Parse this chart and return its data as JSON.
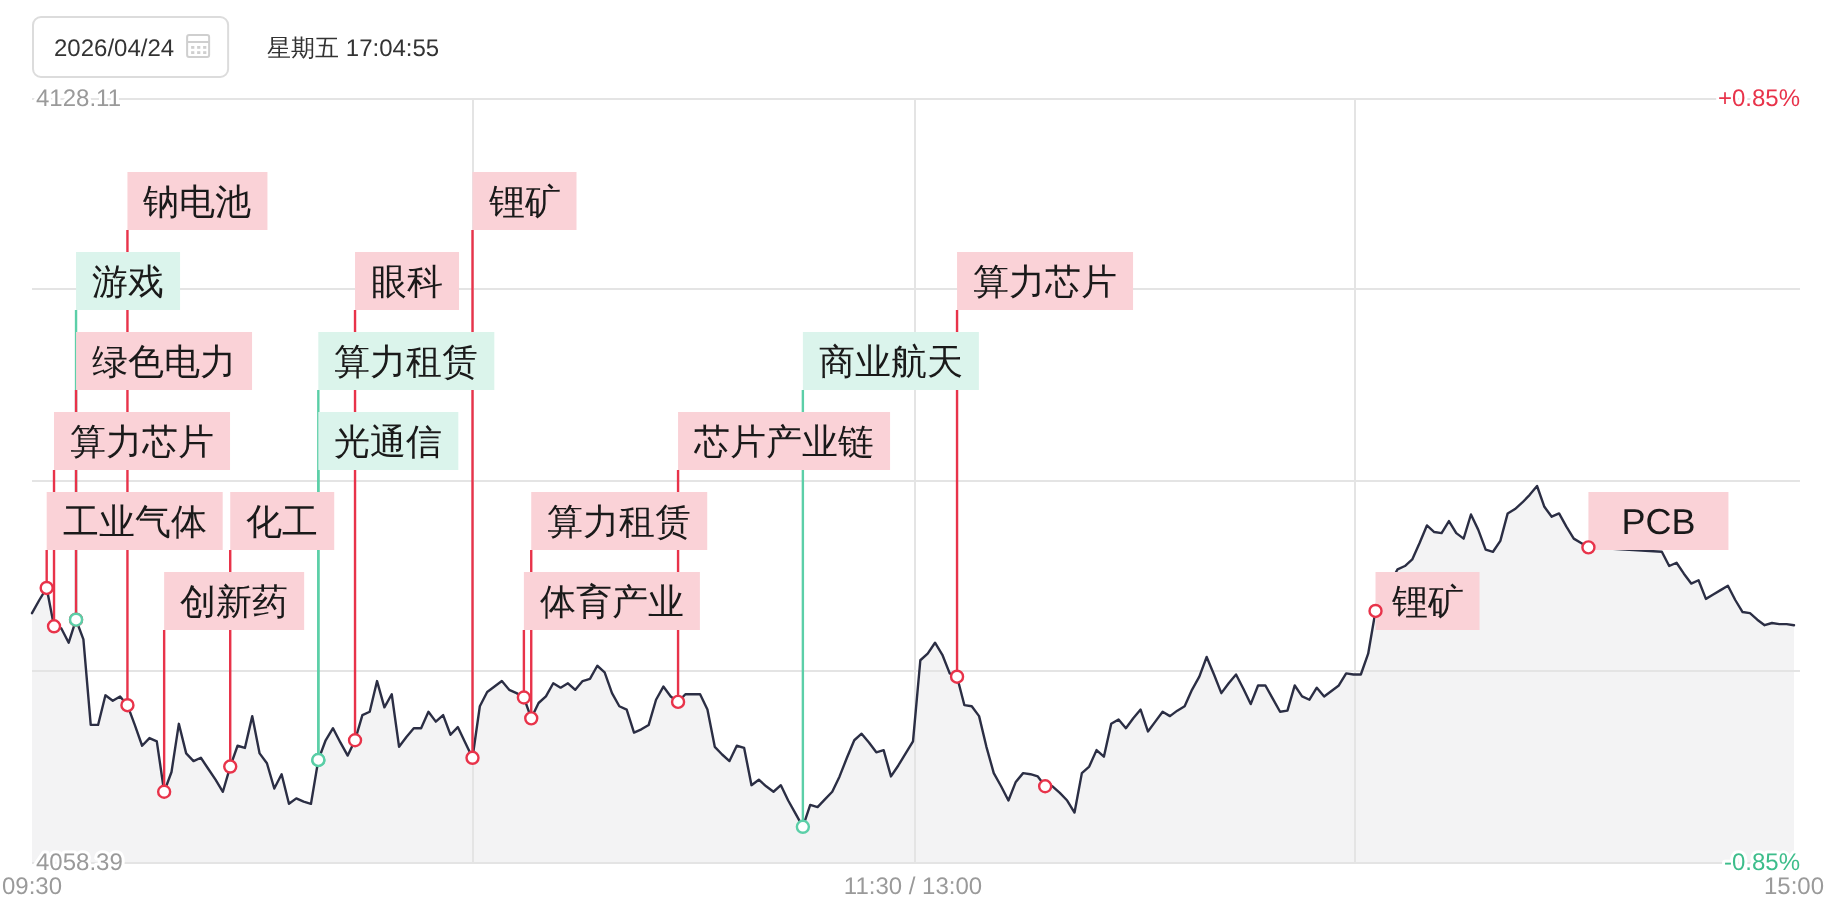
{
  "chart_data": {
    "type": "area",
    "title": "2026/04/24",
    "subtitle": "星期五 17:04:55",
    "categories": [
      "09:30",
      null,
      null,
      null,
      null,
      null,
      null,
      null,
      null,
      null,
      null,
      null,
      null,
      null,
      null,
      null,
      null,
      null,
      null,
      null,
      null,
      null,
      null,
      null,
      null,
      null,
      null,
      null,
      null,
      null,
      null,
      null,
      null,
      null,
      null,
      null,
      null,
      null,
      null,
      null,
      null,
      null,
      null,
      null,
      null,
      null,
      null,
      null,
      null,
      null,
      null,
      null,
      null,
      null,
      null,
      null,
      null,
      null,
      null,
      null,
      null,
      null,
      null,
      null,
      null,
      null,
      null,
      null,
      null,
      null,
      null,
      null,
      null,
      null,
      null,
      null,
      null,
      null,
      null,
      null,
      null,
      null,
      null,
      null,
      null,
      null,
      null,
      null,
      null,
      null,
      null,
      null,
      null,
      null,
      null,
      null,
      null,
      null,
      null,
      null,
      null,
      null,
      null,
      null,
      null,
      null,
      null,
      null,
      null,
      null,
      null,
      null,
      null,
      null,
      null,
      null,
      null,
      null,
      null,
      null,
      "11:30 / 13:00",
      null,
      null,
      null,
      null,
      null,
      null,
      null,
      null,
      null,
      null,
      null,
      null,
      null,
      null,
      null,
      null,
      null,
      null,
      null,
      null,
      null,
      null,
      null,
      null,
      null,
      null,
      null,
      null,
      null,
      null,
      null,
      null,
      null,
      null,
      null,
      null,
      null,
      null,
      null,
      null,
      null,
      null,
      null,
      null,
      null,
      null,
      null,
      null,
      null,
      null,
      null,
      null,
      null,
      null,
      null,
      null,
      null,
      null,
      null,
      null,
      null,
      null,
      null,
      null,
      null,
      null,
      null,
      null,
      null,
      null,
      null,
      null,
      null,
      null,
      null,
      null,
      null,
      null,
      null,
      null,
      null,
      null,
      null,
      null,
      null,
      null,
      null,
      null,
      null,
      null,
      null,
      null,
      null,
      null,
      null,
      null,
      null,
      null,
      null,
      null,
      null,
      null,
      null,
      null,
      null,
      null,
      null,
      null,
      null,
      null,
      null,
      null,
      null,
      null,
      null,
      null,
      null,
      null,
      null,
      "15:00"
    ],
    "ylim": [
      4058.39,
      4128.11
    ],
    "yticks": [
      4058.39,
      {
        "value": 4075.82,
        "label": null
      },
      {
        "value": 4093.25,
        "label": null
      },
      {
        "value": 4110.68,
        "label": null
      },
      4128.11
    ],
    "y2lim": [
      -0.85,
      0.85
    ],
    "y2ticks": [
      {
        "value": -0.85,
        "label": "-0.85%"
      },
      {
        "value": 0.85,
        "label": "+0.85%"
      }
    ],
    "grid": true,
    "series": [
      {
        "color": "#2b2e44",
        "values": [
          4081.1,
          4082.3,
          4083.4,
          4079.9,
          4079.7,
          4078.4,
          4080.5,
          4078.7,
          4070.9,
          4070.9,
          4073.6,
          4073.1,
          4073.5,
          4072.7,
          4070.9,
          4069.0,
          4069.7,
          4069.4,
          4064.8,
          4066.6,
          4071.0,
          4068.3,
          4067.6,
          4067.9,
          4066.9,
          4065.9,
          4064.8,
          4067.1,
          4069.0,
          4068.8,
          4071.7,
          4068.3,
          4067.4,
          4065.1,
          4066.4,
          4063.7,
          4064.2,
          4063.9,
          4063.7,
          4067.7,
          4069.5,
          4070.6,
          4069.3,
          4068.1,
          4069.5,
          4071.8,
          4072.1,
          4074.9,
          4072.5,
          4073.7,
          4068.9,
          4069.8,
          4070.6,
          4070.6,
          4072.1,
          4071.2,
          4071.8,
          4070.0,
          4070.7,
          4069.3,
          4067.9,
          4072.6,
          4073.9,
          4074.4,
          4074.9,
          4074.1,
          4073.8,
          4073.4,
          4071.5,
          4072.9,
          4073.5,
          4074.7,
          4074.3,
          4074.7,
          4074.1,
          4074.9,
          4075.1,
          4076.3,
          4075.7,
          4073.8,
          4072.6,
          4072.3,
          4070.2,
          4070.5,
          4070.9,
          4073.2,
          4074.4,
          4073.5,
          4073.0,
          4073.7,
          4073.7,
          4073.7,
          4072.3,
          4068.9,
          4068.2,
          4067.6,
          4069.0,
          4068.8,
          4065.4,
          4065.9,
          4065.3,
          4064.8,
          4065.4,
          4064.0,
          4062.8,
          4061.6,
          4063.6,
          4063.4,
          4064.1,
          4064.8,
          4066.2,
          4067.9,
          4069.5,
          4070.1,
          4069.3,
          4068.4,
          4068.6,
          4066.2,
          4067.2,
          4068.3,
          4069.4,
          4076.8,
          4077.4,
          4078.4,
          4077.3,
          4075.6,
          4075.3,
          4072.7,
          4072.6,
          4071.7,
          4068.9,
          4066.5,
          4065.3,
          4064.0,
          4065.7,
          4066.5,
          4066.4,
          4066.2,
          4065.3,
          4065.3,
          4064.7,
          4064.0,
          4062.9,
          4066.5,
          4067.1,
          4068.6,
          4068.0,
          4071.0,
          4071.4,
          4070.6,
          4071.5,
          4072.3,
          4070.3,
          4071.2,
          4072.1,
          4071.7,
          4072.2,
          4072.6,
          4074.1,
          4075.3,
          4077.1,
          4075.5,
          4073.8,
          4074.7,
          4075.5,
          4074.2,
          4072.8,
          4074.5,
          4074.5,
          4073.3,
          4072.1,
          4072.2,
          4074.5,
          4073.5,
          4073.2,
          4074.3,
          4073.5,
          4074.0,
          4074.5,
          4075.6,
          4075.5,
          4075.5,
          4077.4,
          4081.3,
          null,
          null,
          4085.1,
          4085.4,
          4086.0,
          4087.5,
          4089.1,
          4088.5,
          4088.4,
          4089.5,
          4088.4,
          4087.9,
          4090.1,
          4088.7,
          4086.9,
          4086.7,
          4087.7,
          4090.2,
          4090.6,
          4091.2,
          4091.9,
          4092.7,
          4090.8,
          4089.9,
          4090.2,
          4089.0,
          4087.9,
          4087.5,
          4087.1,
          null,
          null,
          null,
          null,
          null,
          null,
          null,
          null,
          null,
          4086.7,
          4085.4,
          4085.7,
          4084.7,
          4083.8,
          4084.1,
          4082.4,
          4082.8,
          4083.2,
          4083.6,
          4082.3,
          4081.2,
          4081.1,
          4080.5,
          4080.0,
          4080.2,
          4080.1,
          4080.1,
          4080.0
        ]
      },
      {
        "type": "scatter",
        "color": "#e8334a",
        "marker": "circle",
        "values": [
          null,
          null,
          4083.4,
          4079.9,
          null,
          null,
          4080.5,
          null,
          null,
          null,
          null,
          null,
          null,
          4072.7,
          null,
          null,
          null,
          null,
          4064.8,
          null,
          null,
          null,
          null,
          null,
          null,
          null,
          null,
          4067.1,
          null,
          null,
          null,
          null,
          null,
          null,
          null,
          null,
          null,
          null,
          null,
          null,
          null,
          null,
          null,
          null,
          4069.5,
          null,
          null,
          null,
          null,
          null,
          null,
          null,
          null,
          null,
          null,
          null,
          null,
          null,
          null,
          null,
          4067.9,
          null,
          null,
          null,
          null,
          null,
          null,
          4073.4,
          4071.5,
          null,
          null,
          null,
          null,
          null,
          null,
          null,
          null,
          null,
          null,
          null,
          null,
          null,
          null,
          null,
          null,
          null,
          null,
          null,
          4073.0,
          null,
          null,
          null,
          null,
          null,
          null,
          null,
          null,
          null,
          null,
          null,
          null,
          null,
          null,
          null,
          null,
          null,
          null,
          null,
          null,
          null,
          null,
          null,
          null,
          null,
          null,
          null,
          null,
          null,
          null,
          null,
          null,
          null,
          null,
          null,
          null,
          null,
          4075.3,
          null,
          null,
          null,
          null,
          null,
          null,
          null,
          null,
          null,
          null,
          null,
          4065.3,
          null,
          null,
          null,
          null,
          null,
          null,
          null,
          null,
          null,
          null,
          null,
          null,
          null,
          null,
          null,
          null,
          null,
          null,
          null,
          null,
          null,
          null,
          null,
          null,
          null,
          null,
          null,
          null,
          null,
          null,
          null,
          null,
          null,
          null,
          null,
          null,
          null,
          null,
          null,
          null,
          null,
          null,
          null,
          null,
          4081.3,
          null,
          null,
          null,
          null,
          null,
          null,
          null,
          null,
          null,
          null,
          null,
          null,
          null,
          null,
          null,
          null,
          null,
          null,
          null,
          null,
          null,
          null,
          null,
          null,
          null,
          null,
          null,
          null,
          4087.1,
          null,
          null,
          null,
          null,
          null,
          null,
          null,
          null,
          null,
          null,
          null,
          null,
          null,
          null,
          null,
          null,
          null,
          null,
          null,
          null,
          null,
          null,
          null,
          null,
          null,
          null,
          null,
          null
        ],
        "value_labels": [
          null,
          null,
          "工业气体",
          "算力芯片",
          null,
          null,
          "绿色电力",
          null,
          null,
          null,
          null,
          null,
          null,
          "钠电池",
          null,
          null,
          null,
          null,
          "创新药",
          null,
          null,
          null,
          null,
          null,
          null,
          null,
          null,
          "化工",
          null,
          null,
          null,
          null,
          null,
          null,
          null,
          null,
          null,
          null,
          null,
          null,
          null,
          null,
          null,
          null,
          "眼科",
          null,
          null,
          null,
          null,
          null,
          null,
          null,
          null,
          null,
          null,
          null,
          null,
          null,
          null,
          null,
          "锂矿",
          null,
          null,
          null,
          null,
          null,
          null,
          "体育产业",
          "算力租赁",
          null,
          null,
          null,
          null,
          null,
          null,
          null,
          null,
          null,
          null,
          null,
          null,
          null,
          null,
          null,
          null,
          null,
          null,
          null,
          "芯片产业链",
          null,
          null,
          null,
          null,
          null,
          null,
          null,
          null,
          null,
          null,
          null,
          null,
          null,
          null,
          null,
          null,
          null,
          null,
          null,
          null,
          null,
          null,
          null,
          null,
          null,
          null,
          null,
          null,
          null,
          null,
          null,
          null,
          null,
          null,
          null,
          null,
          null,
          "算力芯片",
          null,
          null,
          null,
          null,
          null,
          null,
          null,
          null,
          null,
          null,
          null,
          null,
          null,
          null,
          null,
          null,
          null,
          null,
          null,
          null,
          null,
          null,
          null,
          null,
          null,
          null,
          null,
          null,
          null,
          null,
          null,
          null,
          null,
          null,
          null,
          null,
          null,
          null,
          null,
          null,
          null,
          null,
          null,
          null,
          null,
          null,
          null,
          null,
          null,
          null,
          null,
          null,
          null,
          null,
          null,
          null,
          "锂矿",
          null,
          null,
          null,
          null,
          null,
          null,
          null,
          null,
          null,
          null,
          null,
          null,
          null,
          null,
          null,
          null,
          null,
          null,
          null,
          null,
          null,
          null,
          null,
          null,
          null,
          null,
          null,
          null,
          "PCB",
          null,
          null,
          null,
          null,
          null,
          null,
          null,
          null,
          null,
          null,
          null,
          null,
          null,
          null,
          null,
          null,
          null,
          null,
          null,
          null,
          null,
          null,
          null,
          null,
          null,
          null,
          null,
          null
        ]
      },
      {
        "type": "scatter",
        "color": "#5ccfa8",
        "marker": "circle",
        "values": [
          null,
          null,
          null,
          null,
          null,
          null,
          4080.5,
          null,
          null,
          null,
          null,
          null,
          null,
          null,
          null,
          null,
          null,
          null,
          null,
          null,
          null,
          null,
          null,
          null,
          null,
          null,
          null,
          null,
          null,
          null,
          null,
          null,
          null,
          null,
          null,
          null,
          null,
          null,
          null,
          4067.7,
          null,
          null,
          null,
          null,
          null,
          null,
          null,
          null,
          null,
          null,
          null,
          null,
          null,
          null,
          null,
          null,
          null,
          null,
          null,
          null,
          null,
          null,
          null,
          null,
          null,
          null,
          null,
          null,
          null,
          null,
          null,
          null,
          null,
          null,
          null,
          null,
          null,
          null,
          null,
          null,
          null,
          null,
          null,
          null,
          null,
          null,
          null,
          null,
          null,
          null,
          null,
          null,
          null,
          null,
          null,
          null,
          null,
          null,
          null,
          null,
          null,
          null,
          null,
          null,
          null,
          4061.6,
          null,
          null,
          null,
          null,
          null,
          null,
          null,
          null,
          null,
          null,
          null,
          null,
          null,
          null,
          null,
          null,
          null,
          null,
          null,
          null,
          null,
          null,
          null,
          null,
          null,
          null,
          null,
          null,
          null,
          null,
          null,
          null,
          null,
          null,
          null,
          null,
          null,
          null,
          null,
          null,
          null,
          null,
          null,
          null,
          null,
          null,
          null,
          null,
          null,
          null,
          null,
          null,
          null,
          null,
          null,
          null,
          null,
          null,
          null,
          null,
          null,
          null,
          null,
          null,
          null,
          null,
          null,
          null,
          null,
          null,
          null,
          null,
          null,
          null,
          null,
          null,
          null,
          null,
          null,
          null,
          null,
          null,
          null,
          null,
          null,
          null,
          null,
          null,
          null,
          null,
          null,
          null,
          null,
          null,
          null,
          null,
          null,
          null,
          null,
          null,
          null,
          null,
          null,
          null,
          null,
          null,
          null,
          null,
          null,
          null,
          null,
          null,
          null,
          null,
          null,
          null,
          null,
          null,
          null,
          null,
          null,
          null,
          null,
          null,
          null,
          null,
          null,
          null,
          null,
          null,
          null,
          null,
          null,
          null,
          null
        ],
        "value_labels": [
          null,
          null,
          null,
          null,
          null,
          null,
          "游戏",
          null,
          null,
          null,
          null,
          null,
          null,
          null,
          null,
          null,
          null,
          null,
          null,
          null,
          null,
          null,
          null,
          null,
          null,
          null,
          null,
          null,
          null,
          null,
          null,
          null,
          null,
          null,
          null,
          null,
          null,
          null,
          null,
          "光通信",
          null,
          null,
          null,
          null,
          null,
          null,
          null,
          null,
          null,
          null,
          null,
          null,
          null,
          null,
          null,
          null,
          null,
          null,
          null,
          null,
          null,
          null,
          null,
          null,
          null,
          null,
          null,
          null,
          null,
          null,
          null,
          null,
          null,
          null,
          null,
          null,
          null,
          null,
          null,
          null,
          null,
          null,
          null,
          null,
          null,
          null,
          null,
          null,
          null,
          null,
          null,
          null,
          null,
          null,
          null,
          null,
          null,
          null,
          null,
          null,
          null,
          null,
          null,
          null,
          null,
          "商业航天",
          null,
          null,
          null,
          null,
          null,
          null,
          null,
          null,
          null,
          null,
          null,
          null,
          null,
          null,
          null,
          null,
          null,
          null,
          null,
          null,
          null,
          null,
          null,
          null,
          null,
          null,
          null,
          null,
          null,
          null,
          null,
          null,
          null,
          null,
          null,
          null,
          null,
          null,
          null,
          null,
          null,
          null,
          null,
          null,
          null,
          null,
          null,
          null,
          null,
          null,
          null,
          null,
          null,
          null,
          null,
          null,
          null,
          null,
          null,
          null,
          null,
          null,
          null,
          null,
          null,
          null,
          null,
          null,
          null,
          null,
          null,
          null,
          null,
          null,
          null,
          null,
          null,
          null,
          null,
          null,
          null,
          null,
          null,
          null,
          null,
          null,
          null,
          null,
          null,
          null,
          null,
          null,
          null,
          null,
          null,
          null,
          null,
          null,
          null,
          null,
          null,
          null,
          null,
          null,
          null,
          null,
          null,
          null,
          null,
          null,
          null,
          null,
          null,
          null,
          null,
          null,
          null,
          null,
          null,
          null,
          null,
          null,
          null,
          null,
          null,
          null,
          null,
          null,
          null,
          null,
          null,
          null,
          null,
          null,
          null
        ]
      },
      {
        "type": "scatter",
        "color": "#5acea6",
        "marker": "circle",
        "values": [
          null,
          null,
          null,
          null,
          null,
          null,
          null,
          null,
          null,
          null,
          null,
          null,
          null,
          null,
          null,
          null,
          null,
          null,
          null,
          null,
          null,
          null,
          null,
          null,
          null,
          null,
          null,
          null,
          null,
          null,
          null,
          null,
          null,
          null,
          null,
          null,
          null,
          null,
          null,
          4067.7,
          null,
          null,
          null,
          null,
          null,
          null,
          null,
          null,
          null,
          null,
          null,
          null,
          null,
          null,
          null,
          null,
          null,
          null,
          null,
          null,
          null,
          null,
          null,
          null,
          null,
          null,
          null,
          null,
          null,
          null,
          null,
          null,
          null,
          null,
          null,
          null,
          null,
          null,
          null,
          null,
          null,
          null,
          null,
          null,
          null,
          null,
          null,
          null,
          null,
          null,
          null,
          null,
          null,
          null,
          null,
          null,
          null,
          null,
          null,
          null,
          null,
          null,
          null,
          null,
          null,
          null,
          null,
          null,
          null,
          null,
          null,
          null,
          null,
          null,
          null,
          null,
          null,
          null,
          null,
          null,
          null,
          null,
          null,
          null,
          null,
          null,
          null,
          null,
          null,
          null,
          null,
          null,
          null,
          null,
          null,
          null,
          null,
          null,
          null,
          null,
          null,
          null,
          null,
          null,
          null,
          null,
          null,
          null,
          null,
          null,
          null,
          null,
          null,
          null,
          null,
          null,
          null,
          null,
          null,
          null,
          null,
          null,
          null,
          null,
          null,
          null,
          null,
          null,
          null,
          null,
          null,
          null,
          null,
          null,
          null,
          null,
          null,
          null,
          null,
          null,
          null,
          null,
          null,
          null,
          null,
          null,
          null,
          null,
          null,
          null,
          null,
          null,
          null,
          null,
          null,
          null,
          null,
          null,
          null,
          null,
          null,
          null,
          null,
          null,
          null,
          null,
          null,
          null,
          null,
          null,
          null,
          null,
          null,
          null,
          null,
          null,
          null,
          null,
          null,
          null,
          null,
          null,
          null,
          null,
          null,
          null,
          null,
          null,
          null,
          null,
          null,
          null,
          null,
          null,
          null,
          null,
          null,
          null,
          null,
          null,
          null
        ],
        "value_labels": [
          null,
          null,
          null,
          null,
          null,
          null,
          null,
          null,
          null,
          null,
          null,
          null,
          null,
          null,
          null,
          null,
          null,
          null,
          null,
          null,
          null,
          null,
          null,
          null,
          null,
          null,
          null,
          null,
          null,
          null,
          null,
          null,
          null,
          null,
          null,
          null,
          null,
          null,
          null,
          "算力租赁",
          null,
          null,
          null,
          null,
          null,
          null,
          null,
          null,
          null,
          null,
          null,
          null,
          null,
          null,
          null,
          null,
          null,
          null,
          null,
          null,
          null,
          null,
          null,
          null,
          null,
          null,
          null,
          null,
          null,
          null,
          null,
          null,
          null,
          null,
          null,
          null,
          null,
          null,
          null,
          null,
          null,
          null,
          null,
          null,
          null,
          null,
          null,
          null,
          null,
          null,
          null,
          null,
          null,
          null,
          null,
          null,
          null,
          null,
          null,
          null,
          null,
          null,
          null,
          null,
          null,
          null,
          null,
          null,
          null,
          null,
          null,
          null,
          null,
          null,
          null,
          null,
          null,
          null,
          null,
          null,
          null,
          null,
          null,
          null,
          null,
          null,
          null,
          null,
          null,
          null,
          null,
          null,
          null,
          null,
          null,
          null,
          null,
          null,
          null,
          null,
          null,
          null,
          null,
          null,
          null,
          null,
          null,
          null,
          null,
          null,
          null,
          null,
          null,
          null,
          null,
          null,
          null,
          null,
          null,
          null,
          null,
          null,
          null,
          null,
          null,
          null,
          null,
          null,
          null,
          null,
          null,
          null,
          null,
          null,
          null,
          null,
          null,
          null,
          null,
          null,
          null,
          null,
          null,
          null,
          null,
          null,
          null,
          null,
          null,
          null,
          null,
          null,
          null,
          null,
          null,
          null,
          null,
          null,
          null,
          null,
          null,
          null,
          null,
          null,
          null,
          null,
          null,
          null,
          null,
          null,
          null,
          null,
          null,
          null,
          null,
          null,
          null,
          null,
          null,
          null,
          null,
          null,
          null,
          null,
          null,
          null,
          null,
          null,
          null,
          null,
          null,
          null,
          null,
          null,
          null,
          null,
          null,
          null,
          null,
          null,
          null
        ]
      }
    ]
  }
}
